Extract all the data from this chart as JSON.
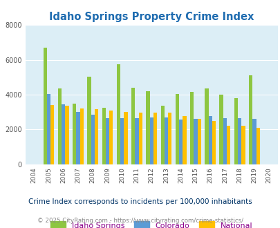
{
  "title": "Idaho Springs Property Crime Index",
  "years": [
    "2004",
    "2005",
    "2006",
    "2007",
    "2008",
    "2009",
    "2010",
    "2011",
    "2012",
    "2013",
    "2014",
    "2015",
    "2016",
    "2017",
    "2018",
    "2019",
    "2020"
  ],
  "idaho_springs": [
    0,
    6700,
    4350,
    3500,
    5050,
    3250,
    5750,
    4400,
    4200,
    3350,
    4050,
    4150,
    4350,
    4000,
    3800,
    5100,
    0
  ],
  "colorado": [
    0,
    4050,
    3450,
    3000,
    2850,
    2650,
    2650,
    2650,
    2700,
    2700,
    2550,
    2600,
    2750,
    2650,
    2650,
    2600,
    0
  ],
  "national": [
    0,
    3400,
    3350,
    3200,
    3150,
    3100,
    3000,
    2950,
    2950,
    2950,
    2750,
    2600,
    2500,
    2200,
    2200,
    2100,
    0
  ],
  "ylim": [
    0,
    8000
  ],
  "yticks": [
    0,
    2000,
    4000,
    6000,
    8000
  ],
  "bar_width": 0.25,
  "color_idaho": "#8dc641",
  "color_colorado": "#5b9bd5",
  "color_national": "#ffc000",
  "bg_color": "#dceef6",
  "grid_color": "#ffffff",
  "title_color": "#1f6cb0",
  "subtitle": "Crime Index corresponds to incidents per 100,000 inhabitants",
  "footer": "© 2025 CityRating.com - https://www.cityrating.com/crime-statistics/",
  "legend_labels": [
    "Idaho Springs",
    "Colorado",
    "National"
  ],
  "legend_text_color": "#8b008b",
  "subtitle_color": "#003366",
  "footer_color": "#888888"
}
